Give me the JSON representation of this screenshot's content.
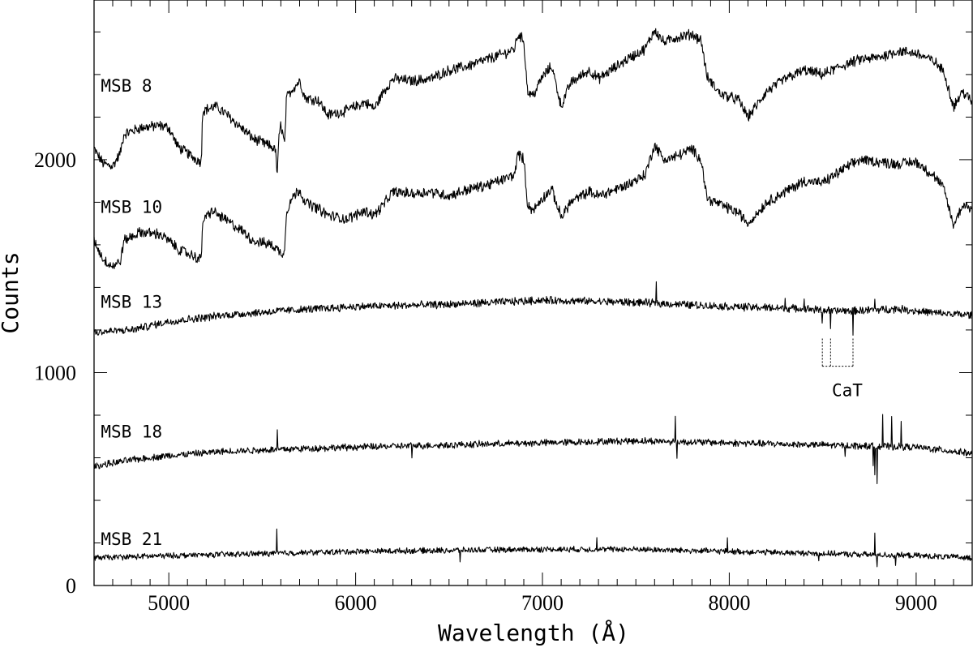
{
  "chart_data": {
    "type": "line",
    "xlabel": "Wavelength (Å)",
    "ylabel": "Counts",
    "xlim": [
      4600,
      9300
    ],
    "ylim": [
      0,
      2750
    ],
    "x_ticks": [
      5000,
      6000,
      7000,
      8000,
      9000
    ],
    "x_tick_labels": [
      "5000",
      "6000",
      "7000",
      "8000",
      "9000"
    ],
    "y_ticks": [
      0,
      1000,
      2000
    ],
    "y_tick_labels": [
      "0",
      "1000",
      "2000"
    ],
    "grid": false,
    "legend": "none (series labelled directly)",
    "series": [
      {
        "name": "MSB 8",
        "label_at": [
          4940,
          2350
        ],
        "noise": 22,
        "points": [
          [
            4600,
            2050
          ],
          [
            4650,
            1980
          ],
          [
            4700,
            1970
          ],
          [
            4740,
            2030
          ],
          [
            4760,
            2120
          ],
          [
            4850,
            2150
          ],
          [
            4950,
            2160
          ],
          [
            5000,
            2150
          ],
          [
            5050,
            2060
          ],
          [
            5150,
            2000
          ],
          [
            5175,
            1990
          ],
          [
            5180,
            2230
          ],
          [
            5250,
            2250
          ],
          [
            5300,
            2220
          ],
          [
            5400,
            2140
          ],
          [
            5450,
            2100
          ],
          [
            5550,
            2060
          ],
          [
            5570,
            2050
          ],
          [
            5580,
            1930
          ],
          [
            5590,
            2100
          ],
          [
            5600,
            2170
          ],
          [
            5620,
            2070
          ],
          [
            5630,
            2290
          ],
          [
            5660,
            2330
          ],
          [
            5700,
            2370
          ],
          [
            5730,
            2290
          ],
          [
            5800,
            2280
          ],
          [
            5850,
            2210
          ],
          [
            5950,
            2230
          ],
          [
            6050,
            2270
          ],
          [
            6100,
            2240
          ],
          [
            6150,
            2320
          ],
          [
            6200,
            2380
          ],
          [
            6300,
            2370
          ],
          [
            6400,
            2380
          ],
          [
            6500,
            2420
          ],
          [
            6600,
            2440
          ],
          [
            6700,
            2470
          ],
          [
            6800,
            2500
          ],
          [
            6850,
            2520
          ],
          [
            6870,
            2590
          ],
          [
            6900,
            2560
          ],
          [
            6920,
            2320
          ],
          [
            6950,
            2300
          ],
          [
            7000,
            2390
          ],
          [
            7050,
            2440
          ],
          [
            7100,
            2250
          ],
          [
            7150,
            2360
          ],
          [
            7250,
            2420
          ],
          [
            7300,
            2380
          ],
          [
            7450,
            2470
          ],
          [
            7550,
            2520
          ],
          [
            7600,
            2610
          ],
          [
            7650,
            2550
          ],
          [
            7700,
            2570
          ],
          [
            7800,
            2590
          ],
          [
            7850,
            2560
          ],
          [
            7880,
            2390
          ],
          [
            7950,
            2310
          ],
          [
            8050,
            2280
          ],
          [
            8100,
            2200
          ],
          [
            8200,
            2320
          ],
          [
            8300,
            2380
          ],
          [
            8400,
            2420
          ],
          [
            8500,
            2400
          ],
          [
            8600,
            2440
          ],
          [
            8700,
            2470
          ],
          [
            8800,
            2480
          ],
          [
            8900,
            2510
          ],
          [
            9000,
            2500
          ],
          [
            9100,
            2460
          ],
          [
            9150,
            2410
          ],
          [
            9200,
            2250
          ],
          [
            9250,
            2320
          ],
          [
            9300,
            2270
          ]
        ]
      },
      {
        "name": "MSB 10",
        "label_at": [
          4940,
          1780
        ],
        "noise": 22,
        "points": [
          [
            4600,
            1620
          ],
          [
            4650,
            1530
          ],
          [
            4700,
            1500
          ],
          [
            4740,
            1520
          ],
          [
            4760,
            1620
          ],
          [
            4850,
            1660
          ],
          [
            4950,
            1650
          ],
          [
            5000,
            1620
          ],
          [
            5050,
            1580
          ],
          [
            5150,
            1540
          ],
          [
            5175,
            1530
          ],
          [
            5180,
            1710
          ],
          [
            5230,
            1760
          ],
          [
            5300,
            1720
          ],
          [
            5400,
            1660
          ],
          [
            5450,
            1620
          ],
          [
            5550,
            1600
          ],
          [
            5580,
            1580
          ],
          [
            5600,
            1560
          ],
          [
            5620,
            1570
          ],
          [
            5630,
            1760
          ],
          [
            5660,
            1820
          ],
          [
            5700,
            1860
          ],
          [
            5730,
            1800
          ],
          [
            5800,
            1770
          ],
          [
            5850,
            1740
          ],
          [
            5950,
            1720
          ],
          [
            6050,
            1760
          ],
          [
            6100,
            1740
          ],
          [
            6150,
            1790
          ],
          [
            6200,
            1850
          ],
          [
            6300,
            1840
          ],
          [
            6400,
            1850
          ],
          [
            6500,
            1830
          ],
          [
            6600,
            1860
          ],
          [
            6700,
            1880
          ],
          [
            6800,
            1910
          ],
          [
            6850,
            1930
          ],
          [
            6870,
            2030
          ],
          [
            6900,
            2000
          ],
          [
            6920,
            1790
          ],
          [
            6950,
            1760
          ],
          [
            7000,
            1820
          ],
          [
            7050,
            1860
          ],
          [
            7100,
            1730
          ],
          [
            7150,
            1800
          ],
          [
            7250,
            1850
          ],
          [
            7300,
            1830
          ],
          [
            7450,
            1880
          ],
          [
            7550,
            1930
          ],
          [
            7600,
            2070
          ],
          [
            7650,
            2000
          ],
          [
            7700,
            2010
          ],
          [
            7800,
            2050
          ],
          [
            7850,
            2000
          ],
          [
            7880,
            1820
          ],
          [
            7950,
            1790
          ],
          [
            8050,
            1750
          ],
          [
            8100,
            1700
          ],
          [
            8200,
            1800
          ],
          [
            8300,
            1850
          ],
          [
            8400,
            1900
          ],
          [
            8500,
            1890
          ],
          [
            8600,
            1950
          ],
          [
            8700,
            2000
          ],
          [
            8800,
            1990
          ],
          [
            8900,
            1980
          ],
          [
            9000,
            1990
          ],
          [
            9100,
            1920
          ],
          [
            9150,
            1860
          ],
          [
            9200,
            1690
          ],
          [
            9250,
            1790
          ],
          [
            9300,
            1770
          ]
        ]
      },
      {
        "name": "MSB 13",
        "label_at": [
          4940,
          1335
        ],
        "noise": 16,
        "points": [
          [
            4600,
            1190
          ],
          [
            4800,
            1200
          ],
          [
            5000,
            1240
          ],
          [
            5300,
            1270
          ],
          [
            5600,
            1290
          ],
          [
            6000,
            1310
          ],
          [
            6500,
            1320
          ],
          [
            7000,
            1340
          ],
          [
            7500,
            1330
          ],
          [
            8000,
            1310
          ],
          [
            8400,
            1300
          ],
          [
            8550,
            1290
          ],
          [
            8660,
            1290
          ],
          [
            8900,
            1300
          ],
          [
            9100,
            1280
          ],
          [
            9300,
            1270
          ]
        ],
        "spikes": [
          [
            7610,
            90
          ],
          [
            8400,
            60
          ],
          [
            8300,
            40
          ],
          [
            8498,
            -60
          ],
          [
            8542,
            -90
          ],
          [
            8662,
            -110
          ],
          [
            8780,
            50
          ]
        ]
      },
      {
        "name": "MSB 18",
        "label_at": [
          4940,
          725
        ],
        "noise": 14,
        "points": [
          [
            4600,
            560
          ],
          [
            4800,
            590
          ],
          [
            5000,
            610
          ],
          [
            5300,
            630
          ],
          [
            5600,
            640
          ],
          [
            6000,
            650
          ],
          [
            6500,
            660
          ],
          [
            7000,
            670
          ],
          [
            7500,
            680
          ],
          [
            8000,
            670
          ],
          [
            8500,
            660
          ],
          [
            9000,
            650
          ],
          [
            9300,
            620
          ]
        ],
        "spikes": [
          [
            5580,
            90
          ],
          [
            6300,
            -60
          ],
          [
            7710,
            110
          ],
          [
            7720,
            -80
          ],
          [
            8620,
            -60
          ],
          [
            8770,
            -90
          ],
          [
            8780,
            -130
          ],
          [
            8790,
            -170
          ],
          [
            8820,
            150
          ],
          [
            8870,
            130
          ],
          [
            8920,
            120
          ]
        ]
      },
      {
        "name": "MSB 21",
        "label_at": [
          4940,
          220
        ],
        "noise": 12,
        "points": [
          [
            4600,
            130
          ],
          [
            5000,
            140
          ],
          [
            5500,
            150
          ],
          [
            6000,
            160
          ],
          [
            6500,
            165
          ],
          [
            7000,
            170
          ],
          [
            7500,
            170
          ],
          [
            8000,
            160
          ],
          [
            8500,
            150
          ],
          [
            9000,
            140
          ],
          [
            9300,
            130
          ]
        ],
        "spikes": [
          [
            5577,
            110
          ],
          [
            6560,
            -50
          ],
          [
            7290,
            60
          ],
          [
            7990,
            60
          ],
          [
            8480,
            -40
          ],
          [
            8780,
            90
          ],
          [
            8790,
            -60
          ],
          [
            8890,
            -50
          ]
        ]
      }
    ],
    "annotations": [
      {
        "label": "CaT",
        "label_at": [
          8640,
          920
        ],
        "marks": [
          {
            "x": 8498,
            "top": 1160,
            "bottom": 1030
          },
          {
            "x": 8542,
            "top": 1160,
            "bottom": 1030
          },
          {
            "x": 8662,
            "top": 1160,
            "bottom": 1030
          }
        ],
        "bracket": {
          "y": 1030,
          "x_from": 8498,
          "x_to": 8662
        }
      }
    ]
  }
}
